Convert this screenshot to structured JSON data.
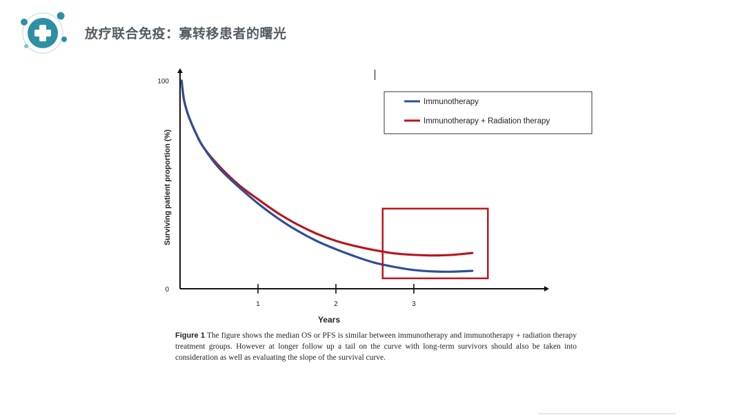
{
  "slide": {
    "title": "放疗联合免疫：寡转移患者的曙光",
    "accent_color": "#2e8fa3"
  },
  "figure": {
    "caption_label": "Figure 1",
    "caption_text": "The figure shows the median OS or PFS is similar between immunotherapy and immunotherapy + radiation therapy treatment groups. However at longer follow up a tail on the curve with long-term survivors should also be taken into consideration as well as evaluating the slope of the survival curve."
  },
  "chart_data": {
    "type": "line",
    "title": "",
    "xlabel": "Years",
    "ylabel": "Surviving patient proportion (%)",
    "xlim": [
      0,
      4.7
    ],
    "ylim": [
      0,
      100
    ],
    "x_ticks": [
      1,
      2,
      3
    ],
    "y_ticks": [
      0,
      100
    ],
    "legend_position": "top-right",
    "grid": false,
    "series": [
      {
        "name": "Immunotherapy",
        "color": "#2f4e98",
        "x": [
          0.02,
          0.05,
          0.1,
          0.2,
          0.3,
          0.5,
          0.75,
          1.0,
          1.25,
          1.5,
          1.75,
          2.0,
          2.25,
          2.5,
          2.75,
          3.0,
          3.25,
          3.5,
          3.75
        ],
        "y": [
          100,
          91,
          84,
          75,
          68,
          58,
          49,
          41,
          34,
          28,
          23,
          19,
          15.5,
          12.5,
          10.5,
          9,
          8.3,
          8.2,
          8.6
        ]
      },
      {
        "name": "Immunotherapy + Radiation therapy",
        "color": "#b5171e",
        "x": [
          0.02,
          0.05,
          0.1,
          0.2,
          0.3,
          0.5,
          0.75,
          1.0,
          1.25,
          1.5,
          1.75,
          2.0,
          2.25,
          2.5,
          2.75,
          3.0,
          3.25,
          3.5,
          3.75
        ],
        "y": [
          100,
          91,
          84,
          75,
          68,
          59,
          50,
          43,
          36.5,
          31,
          26.5,
          23,
          20.5,
          18.5,
          17,
          16.3,
          16,
          16.3,
          17.2
        ]
      }
    ],
    "annotations": [
      {
        "type": "highlight-box",
        "color": "#b5171e",
        "x_range": [
          2.6,
          3.95
        ],
        "y_range": [
          5,
          38.5
        ]
      }
    ]
  }
}
